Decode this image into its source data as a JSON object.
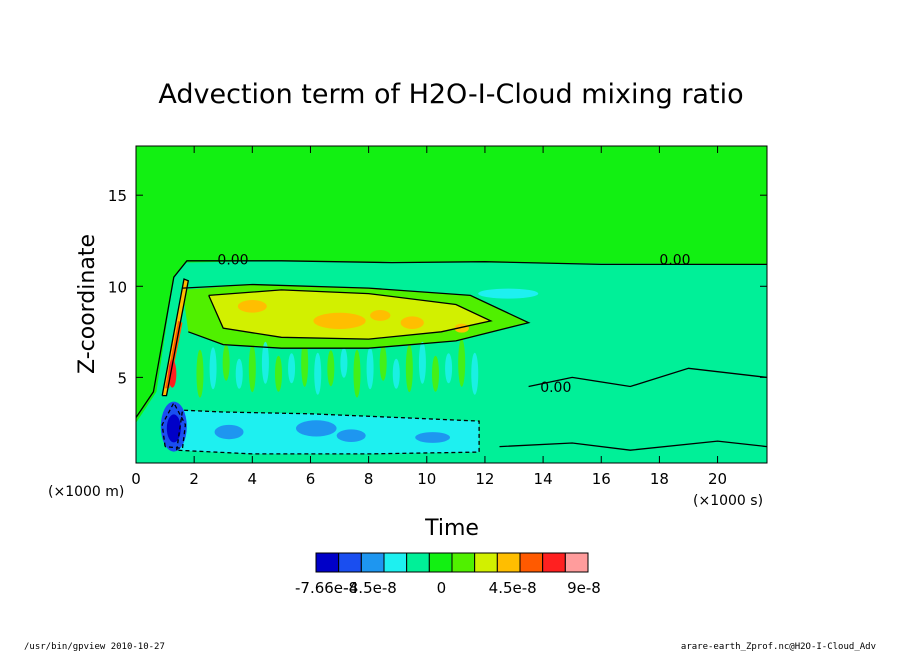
{
  "chart_data": {
    "type": "heatmap",
    "title": "Advection term of H2O-I-Cloud mixing ratio",
    "xlabel": "Time",
    "ylabel": "Z-coordinate",
    "x_unit": "(×1000 s)",
    "y_unit": "(×1000 m)",
    "xlim": [
      0,
      21.7
    ],
    "ylim": [
      0.3,
      17.7
    ],
    "x_ticks": [
      0,
      2,
      4,
      6,
      8,
      10,
      12,
      14,
      16,
      18,
      20
    ],
    "x_tick_labels": [
      "0",
      "2",
      "4",
      "6",
      "8",
      "10",
      "12",
      "14",
      "16",
      "18",
      "20"
    ],
    "y_ticks": [
      5,
      10,
      15
    ],
    "y_tick_labels": [
      "5",
      "10",
      "15"
    ],
    "colorbar": {
      "colors": [
        "#0000c8",
        "#1a4ef0",
        "#1e96f0",
        "#1ef0f0",
        "#00f098",
        "#12f012",
        "#50f000",
        "#d2f000",
        "#ffbe00",
        "#ff5a00",
        "#ff2020",
        "#ff9c9c"
      ],
      "tick_labels": [
        "-7.66e-8",
        "-4.5e-8",
        "0",
        "4.5e-8",
        "9e-8"
      ],
      "tick_values": [
        -7.66e-08,
        -4.5e-08,
        0,
        4.5e-08,
        9e-08
      ]
    },
    "contour_labels": [
      {
        "x": 2.8,
        "y": 11.2,
        "text": "0.00"
      },
      {
        "x": 18.0,
        "y": 11.2,
        "text": "0.00"
      },
      {
        "x": 13.9,
        "y": 4.2,
        "text": "0.00"
      }
    ],
    "regions": [
      {
        "name": "background",
        "level": "0",
        "x": [
          0,
          21.7
        ],
        "y": [
          0.3,
          17.7
        ]
      },
      {
        "name": "lower-layer",
        "level": "slightly negative",
        "x": [
          0,
          21.7
        ],
        "y": [
          0.3,
          11.3
        ]
      },
      {
        "name": "mid-positive-band",
        "level": "positive",
        "x": [
          1.5,
          13.5
        ],
        "y": [
          6,
          10
        ]
      },
      {
        "name": "max-positive-core",
        "level": "9e-8",
        "x": [
          1.1,
          1.8
        ],
        "y": [
          4,
          10
        ]
      },
      {
        "name": "min-negative-core",
        "level": "-7.66e-8",
        "x": [
          1.0,
          1.6
        ],
        "y": [
          1,
          3.5
        ]
      },
      {
        "name": "low-negative-band",
        "level": "negative",
        "x": [
          1.5,
          11.8
        ],
        "y": [
          0.8,
          3
        ]
      }
    ]
  },
  "footer": {
    "left": "/usr/bin/gpview  2010-10-27",
    "right": "arare-earth_Zprof.nc@H2O-I-Cloud_Adv"
  }
}
